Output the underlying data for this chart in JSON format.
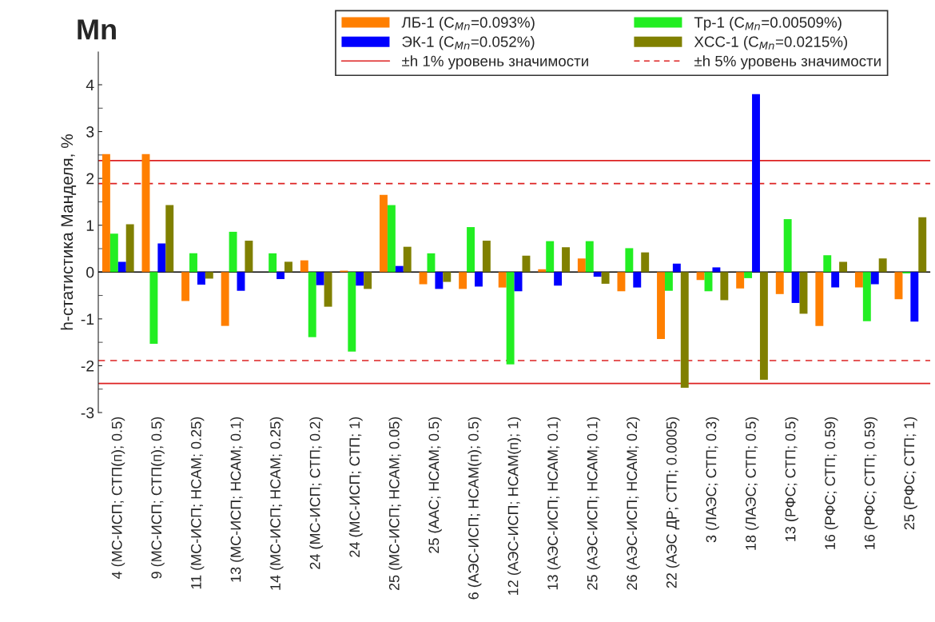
{
  "chart_data": {
    "type": "bar",
    "title": "Mn",
    "ylabel": "h-статистика Манделя, %",
    "categories": [
      "4 (МС-ИСП; СТП(п); 0.5)",
      "9 (МС-ИСП; СТП(п); 0.5)",
      "11 (МС-ИСП; НСАМ; 0.25)",
      "13 (МС-ИСП; НСАМ; 0.1)",
      "14 (МС-ИСП; НСАМ; 0.25)",
      "24 (МС-ИСП; СТП; 0.2)",
      "24 (МС-ИСП; СТП; 1)",
      "25 (МС-ИСП; НСАМ; 0.05)",
      "25 (ААС; НСАМ; 0.5)",
      "6 (АЭС-ИСП; НСАМ(п); 0.5)",
      "12 (АЭС-ИСП; НСАМ(п); 1)",
      "13 (АЭС-ИСП; НСАМ; 0.1)",
      "25 (АЭС-ИСП; НСАМ; 0.1)",
      "26 (АЭС-ИСП; НСАМ; 0.2)",
      "22 (АЭС ДР; СТП; 0.0005)",
      "3 (ЛАЭС; СТП; 0.3)",
      "18 (ЛАЭС; СТП; 0.5)",
      "13 (РФС; СТП; 0.5)",
      "16 (РФС; СТП; 0.59)",
      "16 (РФС; СТП; 0.59)",
      "25 (РФС; СТП; 1)"
    ],
    "series": [
      {
        "name": "ЛБ-1 (C$_{Mn}$=0.093%)",
        "color": "#ff7f00",
        "values": [
          2.52,
          2.52,
          -0.62,
          -1.15,
          0,
          0.25,
          0.03,
          1.65,
          -0.26,
          -0.36,
          -0.33,
          0.06,
          0.29,
          -0.41,
          -1.43,
          -0.17,
          -0.35,
          -0.47,
          -1.15,
          -0.33,
          -0.58
        ]
      },
      {
        "name": "Тр-1 (C$_{Mn}$=0.00509%)",
        "color": "#22ee22",
        "values": [
          0.82,
          -1.53,
          0.4,
          0.86,
          0.4,
          -1.39,
          -1.7,
          1.43,
          0.4,
          0.96,
          -1.97,
          0.66,
          0.66,
          0.51,
          -0.4,
          -0.41,
          -0.13,
          1.13,
          0.36,
          -1.05,
          -0.03
        ]
      },
      {
        "name": "ЭК-1 (C$_{Mn}$=0.052%)",
        "color": "#0000ff",
        "values": [
          0.22,
          0.61,
          -0.27,
          -0.4,
          -0.15,
          -0.28,
          -0.29,
          0.13,
          -0.36,
          -0.31,
          -0.41,
          -0.29,
          -0.1,
          -0.33,
          0.18,
          0.1,
          3.8,
          -0.66,
          -0.33,
          -0.26,
          -1.06
        ]
      },
      {
        "name": "ХСС-1 (C$_{Mn}$=0.0215%)",
        "color": "#808000",
        "values": [
          1.02,
          1.43,
          -0.14,
          0.67,
          0.22,
          -0.74,
          -0.36,
          0.54,
          -0.21,
          0.67,
          0.35,
          0.53,
          -0.25,
          0.42,
          -2.47,
          -0.6,
          -2.3,
          -0.89,
          0.22,
          0.29,
          1.17
        ]
      }
    ],
    "ylim": [
      -3,
      4.7
    ],
    "yticks": [
      -3,
      -2,
      -1,
      0,
      1,
      2,
      3,
      4
    ],
    "ref_lines": [
      {
        "axis": "y",
        "value": 2.38,
        "label": "±h 1% уровень значимости",
        "color": "#dd2222",
        "line_style": "solid"
      },
      {
        "axis": "y",
        "value": -2.38,
        "color": "#dd2222",
        "line_style": "solid"
      },
      {
        "axis": "y",
        "value": 1.89,
        "label": "±h 5% уровень значимости",
        "color": "#dd2222",
        "line_style": "dashed"
      },
      {
        "axis": "y",
        "value": -1.89,
        "color": "#dd2222",
        "line_style": "dashed"
      }
    ],
    "legend": "top right"
  }
}
